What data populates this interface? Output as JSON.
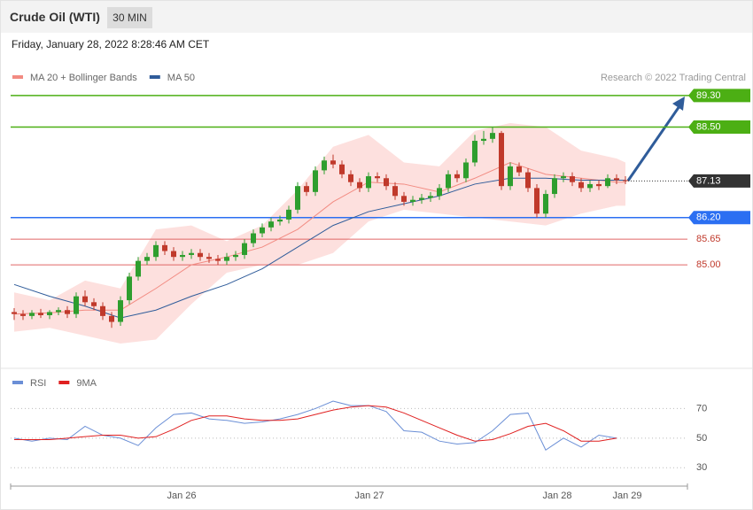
{
  "header": {
    "title": "Crude Oil (WTI)",
    "timeframe": "30 MIN",
    "timestamp": "Friday, January 28, 2022 8:28:46 AM CET"
  },
  "chart_data": [
    {
      "type": "candlestick",
      "credit": "Research © 2022 Trading Central",
      "xlim": [
        -0.4,
        76
      ],
      "ylim": [
        83.0,
        90.4
      ],
      "up_color": "#2e9e2e",
      "down_color": "#c0392b",
      "open": [
        83.8,
        83.75,
        83.7,
        83.78,
        83.72,
        83.8,
        83.85,
        83.75,
        84.2,
        84.05,
        83.95,
        83.7,
        83.55,
        84.1,
        84.7,
        85.1,
        85.2,
        85.5,
        85.35,
        85.2,
        85.25,
        85.3,
        85.2,
        85.15,
        85.1,
        85.2,
        85.25,
        85.55,
        85.8,
        85.95,
        86.1,
        86.15,
        86.4,
        87.0,
        86.85,
        87.4,
        87.65,
        87.55,
        87.3,
        87.1,
        86.95,
        87.25,
        87.2,
        87.0,
        86.75,
        86.6,
        86.65,
        86.7,
        86.75,
        86.95,
        87.3,
        87.2,
        87.6,
        88.15,
        88.2,
        88.35,
        87.0,
        87.5,
        87.35,
        86.95,
        86.3,
        86.8,
        87.2,
        87.25,
        87.1,
        86.95,
        87.05,
        87.0,
        87.2,
        87.15
      ],
      "high": [
        83.9,
        83.85,
        83.85,
        83.88,
        83.85,
        83.92,
        83.95,
        84.3,
        84.35,
        84.15,
        84.05,
        83.8,
        84.2,
        84.8,
        85.2,
        85.3,
        85.6,
        85.6,
        85.45,
        85.35,
        85.4,
        85.4,
        85.3,
        85.25,
        85.3,
        85.35,
        85.65,
        85.9,
        86.05,
        86.2,
        86.25,
        86.5,
        87.1,
        87.1,
        87.5,
        87.75,
        87.8,
        87.65,
        87.4,
        87.2,
        87.35,
        87.35,
        87.3,
        87.1,
        86.85,
        86.75,
        86.8,
        86.85,
        87.05,
        87.4,
        87.4,
        87.7,
        88.3,
        88.4,
        88.5,
        88.4,
        87.6,
        87.6,
        87.45,
        87.05,
        86.9,
        87.3,
        87.35,
        87.35,
        87.2,
        87.15,
        87.15,
        87.3,
        87.3,
        87.25
      ],
      "low": [
        83.6,
        83.6,
        83.62,
        83.65,
        83.62,
        83.72,
        83.65,
        83.65,
        83.95,
        83.85,
        83.6,
        83.4,
        83.45,
        84.0,
        84.6,
        85.0,
        85.1,
        85.25,
        85.1,
        85.1,
        85.15,
        85.1,
        85.05,
        85.0,
        85.0,
        85.1,
        85.15,
        85.45,
        85.7,
        85.85,
        86.0,
        86.05,
        86.3,
        86.75,
        86.75,
        87.3,
        87.45,
        87.2,
        87.0,
        86.85,
        86.85,
        87.1,
        86.9,
        86.65,
        86.5,
        86.5,
        86.55,
        86.6,
        86.65,
        86.85,
        87.1,
        87.1,
        87.5,
        88.05,
        88.1,
        86.9,
        86.9,
        87.25,
        86.85,
        86.2,
        86.2,
        86.7,
        87.1,
        87.0,
        86.85,
        86.85,
        86.9,
        86.95,
        87.05,
        87.05
      ],
      "close": [
        83.75,
        83.7,
        83.78,
        83.72,
        83.8,
        83.85,
        83.75,
        84.2,
        84.05,
        83.95,
        83.7,
        83.55,
        84.1,
        84.7,
        85.1,
        85.2,
        85.5,
        85.35,
        85.2,
        85.25,
        85.3,
        85.2,
        85.15,
        85.1,
        85.2,
        85.25,
        85.55,
        85.8,
        85.95,
        86.1,
        86.15,
        86.4,
        87.0,
        86.85,
        87.4,
        87.65,
        87.55,
        87.3,
        87.1,
        86.95,
        87.25,
        87.2,
        87.0,
        86.75,
        86.6,
        86.65,
        86.7,
        86.75,
        86.95,
        87.3,
        87.2,
        87.6,
        88.15,
        88.2,
        88.35,
        87.0,
        87.5,
        87.35,
        86.95,
        86.3,
        86.8,
        87.2,
        87.25,
        87.1,
        86.95,
        87.05,
        87.0,
        87.2,
        87.15,
        87.13
      ],
      "series": [
        {
          "name": "MA 20 + Bollinger Bands",
          "color": "#f28b82",
          "band_color": "#fde0de",
          "x": [
            0,
            4,
            8,
            12,
            16,
            20,
            24,
            28,
            32,
            36,
            40,
            44,
            48,
            52,
            56,
            60,
            64,
            68,
            69
          ],
          "values": [
            83.75,
            83.78,
            83.85,
            83.85,
            84.4,
            85.0,
            85.2,
            85.45,
            85.9,
            86.6,
            87.1,
            87.05,
            86.85,
            87.2,
            87.6,
            87.3,
            87.2,
            87.1,
            87.1
          ],
          "upper": [
            84.3,
            84.1,
            84.6,
            84.4,
            85.9,
            86.0,
            85.6,
            86.0,
            86.9,
            88.0,
            88.3,
            87.6,
            87.5,
            88.4,
            88.6,
            88.5,
            87.9,
            87.7,
            87.6
          ],
          "lower": [
            83.3,
            83.4,
            83.2,
            83.0,
            83.1,
            84.0,
            84.8,
            85.0,
            85.0,
            85.3,
            86.1,
            86.4,
            86.3,
            86.2,
            86.1,
            86.0,
            86.3,
            86.5,
            86.5
          ]
        },
        {
          "name": "MA 50",
          "color": "#2f5c9a",
          "x": [
            0,
            4,
            8,
            12,
            16,
            20,
            24,
            28,
            32,
            36,
            40,
            44,
            48,
            52,
            56,
            60,
            64,
            68,
            69
          ],
          "values": [
            84.5,
            84.2,
            83.95,
            83.65,
            83.85,
            84.2,
            84.5,
            84.9,
            85.45,
            86.0,
            86.35,
            86.55,
            86.75,
            87.05,
            87.2,
            87.2,
            87.15,
            87.15,
            87.15
          ]
        }
      ],
      "levels": [
        {
          "value": 89.3,
          "label": "89.30",
          "color": "#4caf14",
          "boxed": true
        },
        {
          "value": 88.5,
          "label": "88.50",
          "color": "#4caf14",
          "boxed": true
        },
        {
          "value": 87.13,
          "color": "#333333",
          "boxed": true,
          "dotted": true
        },
        {
          "value": 86.2,
          "label": "86.20",
          "color": "#2b6ff2",
          "boxed": true
        },
        {
          "value": 85.65,
          "color": "#e06666",
          "boxed": false
        },
        {
          "value": 85.0,
          "label": "85.00",
          "color": "#e06666",
          "boxed": false
        }
      ]
    },
    {
      "type": "line",
      "xlim": [
        -0.4,
        76
      ],
      "ylim": [
        20,
        90
      ],
      "yticks": [
        30,
        50,
        70
      ],
      "xticks": [
        {
          "value": 18.9,
          "label": "Jan 26"
        },
        {
          "value": 40.1,
          "label": "Jan 27"
        },
        {
          "value": 61.3,
          "label": "Jan 28"
        },
        {
          "value": 69.2,
          "label": "Jan 29"
        }
      ],
      "x": [
        0,
        2,
        4,
        6,
        8,
        10,
        12,
        14,
        16,
        18,
        20,
        22,
        24,
        26,
        28,
        30,
        32,
        34,
        36,
        38,
        40,
        42,
        44,
        46,
        48,
        50,
        52,
        54,
        56,
        58,
        60,
        62,
        64,
        66,
        68
      ],
      "series": [
        {
          "name": "RSI",
          "color": "#6b8fd6",
          "values": [
            50,
            48,
            50,
            49,
            58,
            52,
            50,
            45,
            57,
            66,
            67,
            63,
            62,
            60,
            61,
            63,
            66,
            70,
            75,
            72,
            72,
            68,
            55,
            54,
            48,
            46,
            47,
            55,
            66,
            67,
            42,
            50,
            44,
            52,
            50
          ]
        },
        {
          "name": "9MA",
          "color": "#e02020",
          "values": [
            49,
            49,
            49,
            50,
            51,
            52,
            52,
            50,
            51,
            56,
            62,
            65,
            65,
            63,
            62,
            62,
            63,
            66,
            69,
            71,
            72,
            71,
            67,
            62,
            57,
            52,
            48,
            49,
            53,
            58,
            60,
            55,
            48,
            48,
            50
          ]
        }
      ]
    }
  ]
}
